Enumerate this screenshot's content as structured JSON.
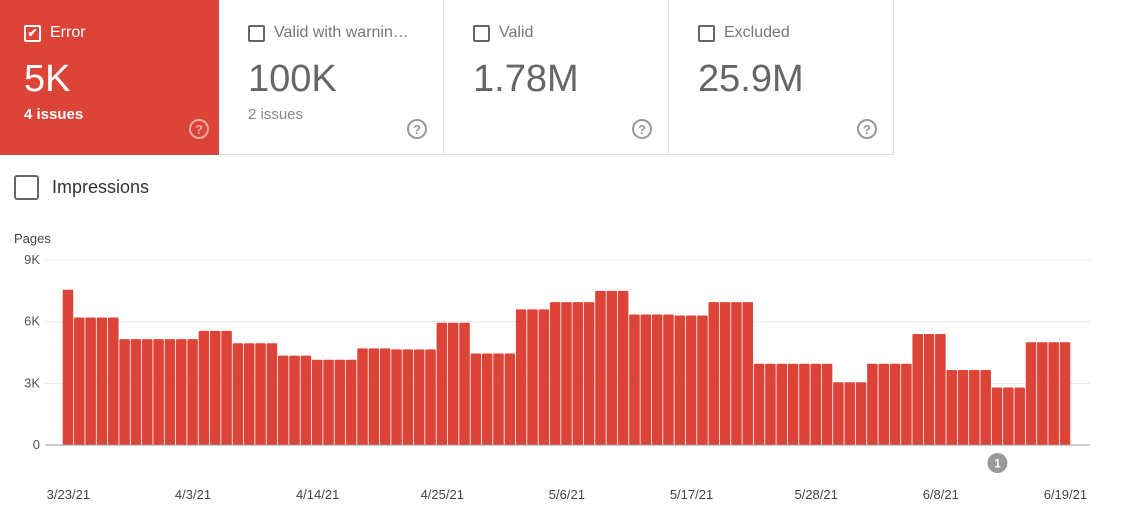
{
  "cards": [
    {
      "label": "Error",
      "value": "5K",
      "sub": "4 issues",
      "checked": true,
      "color": "#db4437"
    },
    {
      "label": "Valid with warnin…",
      "value": "100K",
      "sub": "2 issues",
      "checked": false
    },
    {
      "label": "Valid",
      "value": "1.78M",
      "sub": "",
      "checked": false
    },
    {
      "label": "Excluded",
      "value": "25.9M",
      "sub": "",
      "checked": false
    }
  ],
  "help_icon": "?",
  "check_icon": "✔",
  "impressions": {
    "label": "Impressions",
    "checked": false
  },
  "chart_data": {
    "type": "bar",
    "ylabel": "Pages",
    "ylim": [
      0,
      9000
    ],
    "yticks": [
      "0",
      "3K",
      "6K",
      "9K"
    ],
    "ytick_values": [
      0,
      3000,
      6000,
      9000
    ],
    "xtick_labels": [
      "3/23/21",
      "4/3/21",
      "4/14/21",
      "4/25/21",
      "5/6/21",
      "5/17/21",
      "5/28/21",
      "6/8/21",
      "6/19/21"
    ],
    "start_date": "3/23/21",
    "end_date": "6/19/21",
    "color": "#db4437",
    "grid": true,
    "annotation": {
      "label": "1",
      "bar_index": 82
    },
    "values": [
      7550,
      6200,
      6200,
      6200,
      6200,
      5150,
      5150,
      5150,
      5150,
      5150,
      5150,
      5150,
      5550,
      5550,
      5550,
      4950,
      4950,
      4950,
      4950,
      4350,
      4350,
      4350,
      4150,
      4150,
      4150,
      4150,
      4700,
      4700,
      4700,
      4650,
      4650,
      4650,
      4650,
      5950,
      5950,
      5950,
      4450,
      4450,
      4450,
      4450,
      6600,
      6600,
      6600,
      6950,
      6950,
      6950,
      6950,
      7500,
      7500,
      7500,
      6350,
      6350,
      6350,
      6350,
      6300,
      6300,
      6300,
      6950,
      6950,
      6950,
      6950,
      3950,
      3950,
      3950,
      3950,
      3950,
      3950,
      3950,
      3050,
      3050,
      3050,
      3950,
      3950,
      3950,
      3950,
      5400,
      5400,
      5400,
      3650,
      3650,
      3650,
      3650,
      2800,
      2800,
      2800,
      5000,
      5000,
      5000,
      5000
    ]
  }
}
